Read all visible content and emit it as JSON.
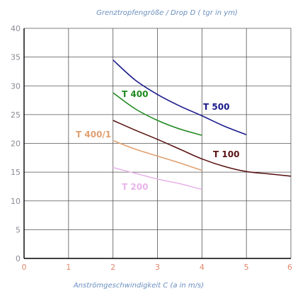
{
  "chart_data": {
    "type": "line",
    "title": "Grenztropfengröße / Drop   D  ( tgr in ym)",
    "xlabel": "Anströmgeschwindigkeit  C  (a in m/s)",
    "ylabel": "",
    "xlim": [
      0,
      6
    ],
    "ylim": [
      0,
      40
    ],
    "xticks": [
      "0",
      "1",
      "2",
      "3",
      "4",
      "5",
      "6"
    ],
    "yticks": [
      "0",
      "5",
      "10",
      "15",
      "20",
      "25",
      "30",
      "35",
      "40"
    ],
    "grid": true,
    "colors": {
      "grid": "#555555",
      "axis": "#000000",
      "title": "#6a8fbf",
      "ytick": "#8a8a96",
      "xtick": "#e4876a"
    },
    "series": [
      {
        "name": "T 500",
        "color": "#1a1a8c",
        "x": [
          2.0,
          2.5,
          3.0,
          3.5,
          4.0,
          4.5,
          5.0
        ],
        "y": [
          34.5,
          31.0,
          28.5,
          26.5,
          24.8,
          23.0,
          21.5
        ]
      },
      {
        "name": "T 400",
        "color": "#1f8a1f",
        "x": [
          2.0,
          2.5,
          3.0,
          3.5,
          4.0
        ],
        "y": [
          28.8,
          26.0,
          24.0,
          22.5,
          21.4
        ]
      },
      {
        "name": "T 100",
        "color": "#5a1414",
        "x": [
          2.0,
          2.5,
          3.0,
          3.5,
          4.0,
          4.5,
          5.0,
          5.5,
          6.0
        ],
        "y": [
          24.0,
          22.3,
          20.7,
          19.0,
          17.3,
          16.0,
          15.1,
          14.7,
          14.3
        ]
      },
      {
        "name": "T 400/1",
        "color": "#e0a070",
        "x": [
          2.0,
          2.5,
          3.0,
          3.5,
          4.0
        ],
        "y": [
          20.5,
          19.0,
          17.8,
          16.6,
          15.3
        ]
      },
      {
        "name": "T 200",
        "color": "#e8b4e8",
        "x": [
          2.0,
          2.5,
          3.0,
          3.5,
          4.0
        ],
        "y": [
          15.8,
          14.8,
          13.8,
          13.0,
          12.0
        ]
      }
    ]
  }
}
